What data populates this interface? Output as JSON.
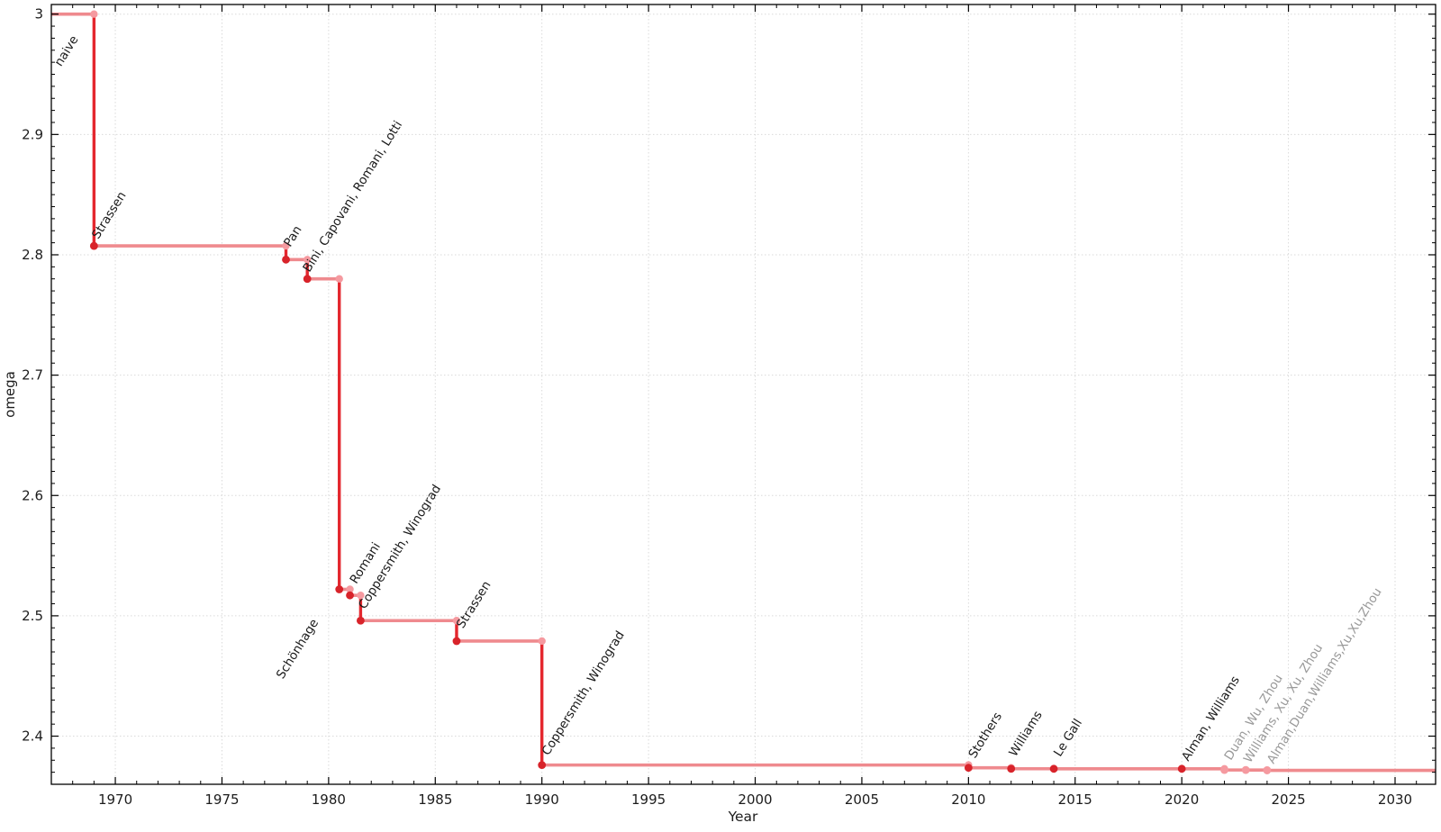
{
  "style": {
    "background": "#ffffff",
    "step_flat_color": "#ef8a8e",
    "step_drop_color": "#e4272e",
    "marker_confirmed_color": "#d8232a",
    "marker_corner_color": "#f59aa0",
    "marker_unconfirmed_color": "#f59aa0",
    "annotation_confirmed_color": "#1a1a1a",
    "annotation_unconfirmed_color": "#999999",
    "grid_color": "#dadada",
    "axis_color": "#000000",
    "tick_label_color": "#1c1c1c"
  },
  "chart_data": {
    "type": "line",
    "subtype": "step-post",
    "title": "",
    "xlabel": "Year",
    "ylabel": "omega",
    "xlim": [
      1967,
      2031.9
    ],
    "ylim": [
      2.36,
      3.008
    ],
    "grid": true,
    "legend": false,
    "xticks": [
      1970,
      1975,
      1980,
      1985,
      1990,
      1995,
      2000,
      2005,
      2010,
      2015,
      2020,
      2025,
      2030
    ],
    "yticks": [
      {
        "v": 3.0,
        "label": "3"
      },
      {
        "v": 2.9,
        "label": "2.9"
      },
      {
        "v": 2.8,
        "label": "2.8"
      },
      {
        "v": 2.7,
        "label": "2.7"
      },
      {
        "v": 2.6,
        "label": "2.6"
      },
      {
        "v": 2.5,
        "label": "2.5"
      },
      {
        "v": 2.4,
        "label": "2.4"
      }
    ],
    "minor_tick_step_x": 1,
    "minor_tick_step_y": 0.01,
    "line_end_year": 2031.9,
    "points": [
      {
        "year": 1967,
        "omega": 3.0,
        "label": "naive",
        "confirmed": true,
        "edge_start": true,
        "label_anchor": {
          "year": 1967.45,
          "omega": 2.956
        }
      },
      {
        "year": 1969,
        "omega": 2.8074,
        "label": "Strassen",
        "confirmed": true,
        "label_anchor": {
          "year": 1969.2,
          "omega": 2.8126
        }
      },
      {
        "year": 1978,
        "omega": 2.796,
        "label": "Pan",
        "confirmed": true,
        "label_anchor": {
          "year": 1978.2,
          "omega": 2.806
        }
      },
      {
        "year": 1979,
        "omega": 2.78,
        "label": "Bini, Capovani, Romani, Lotti",
        "confirmed": true,
        "label_anchor": {
          "year": 1979.1,
          "omega": 2.785
        }
      },
      {
        "year": 1980.5,
        "omega": 2.522,
        "label": "Schönhage",
        "confirmed": true,
        "label_anchor": {
          "year": 1977.85,
          "omega": 2.447
        }
      },
      {
        "year": 1981,
        "omega": 2.517,
        "label": "Romani",
        "confirmed": true,
        "label_anchor": {
          "year": 1981.3,
          "omega": 2.526
        }
      },
      {
        "year": 1981.5,
        "omega": 2.496,
        "label": "Coppersmith, Winograd",
        "confirmed": true,
        "label_anchor": {
          "year": 1981.7,
          "omega": 2.505
        }
      },
      {
        "year": 1986,
        "omega": 2.479,
        "label": "Strassen",
        "confirmed": true,
        "label_anchor": {
          "year": 1986.3,
          "omega": 2.489
        }
      },
      {
        "year": 1990,
        "omega": 2.376,
        "label": "Coppersmith, Winograd",
        "confirmed": true,
        "label_anchor": {
          "year": 1990.3,
          "omega": 2.3834
        }
      },
      {
        "year": 2010,
        "omega": 2.3737,
        "label": "Stothers",
        "confirmed": true,
        "label_anchor": {
          "year": 2010.3,
          "omega": 2.381
        }
      },
      {
        "year": 2012,
        "omega": 2.3729,
        "label": "Williams",
        "confirmed": true,
        "label_anchor": {
          "year": 2012.2,
          "omega": 2.3824
        }
      },
      {
        "year": 2014,
        "omega": 2.3728639,
        "label": "Le Gall",
        "confirmed": true,
        "label_anchor": {
          "year": 2014.3,
          "omega": 2.3824
        }
      },
      {
        "year": 2020,
        "omega": 2.3728596,
        "label": "Alman, Williams",
        "confirmed": true,
        "label_anchor": {
          "year": 2020.3,
          "omega": 2.3787
        }
      },
      {
        "year": 2022,
        "omega": 2.37188,
        "label": "Duan, Wu, Zhou",
        "confirmed": false,
        "label_anchor": {
          "year": 2022.3,
          "omega": 2.3794
        }
      },
      {
        "year": 2023,
        "omega": 2.371866,
        "label": "Williams, Xu, Xu, Zhou",
        "confirmed": false,
        "label_anchor": {
          "year": 2023.2,
          "omega": 2.3772
        }
      },
      {
        "year": 2024,
        "omega": 2.371552,
        "label": "Alman,Duan,Williams,Xu,Xu,Zhou",
        "confirmed": false,
        "label_anchor": {
          "year": 2024.3,
          "omega": 2.3765
        }
      }
    ]
  }
}
